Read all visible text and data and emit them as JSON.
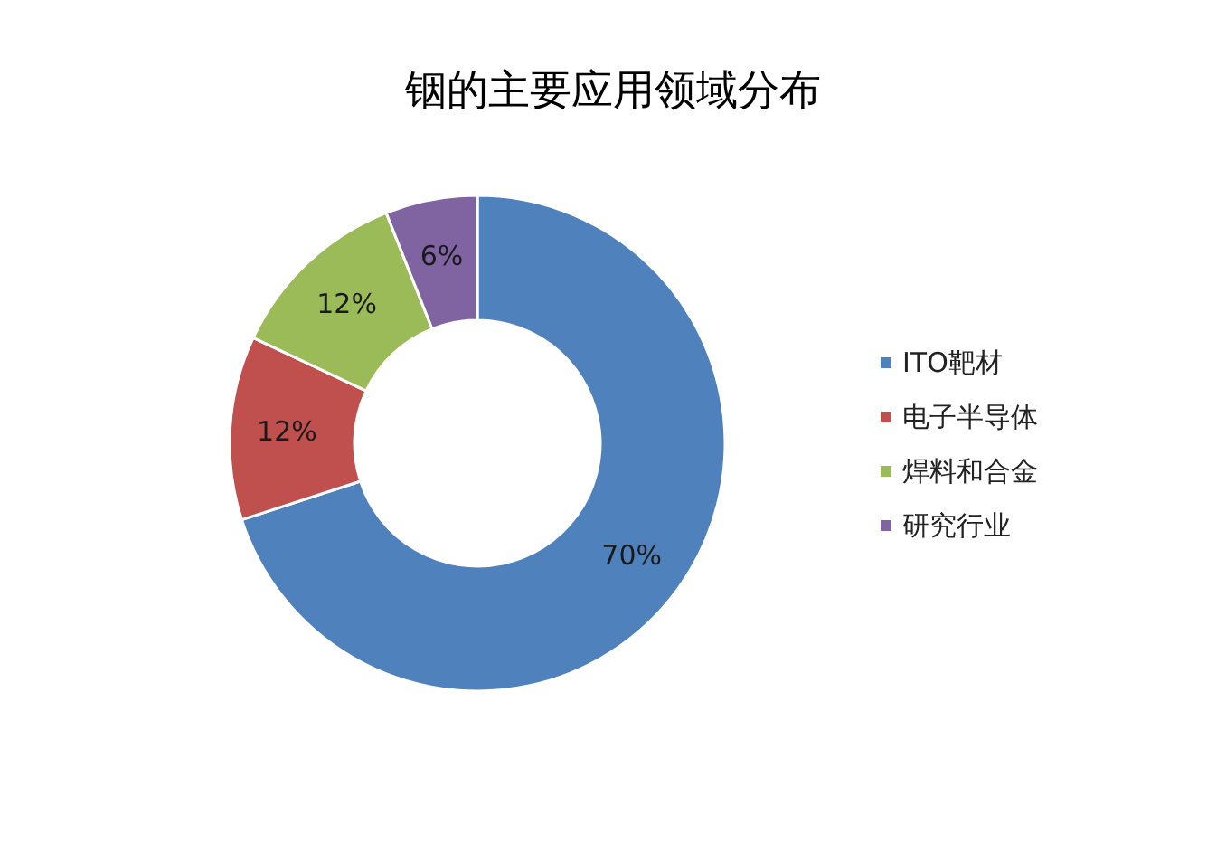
{
  "chart_data": {
    "type": "donut",
    "title": "铟的主要应用领域分布",
    "categories": [
      "ITO靶材",
      "电子半导体",
      "焊料和合金",
      "研究行业"
    ],
    "values": [
      70,
      12,
      12,
      6
    ],
    "colors": [
      "#4f81bd",
      "#c0504d",
      "#9bbb59",
      "#8064a2"
    ],
    "value_labels": [
      "70%",
      "12%",
      "12%",
      "6%"
    ],
    "legend": "right"
  }
}
